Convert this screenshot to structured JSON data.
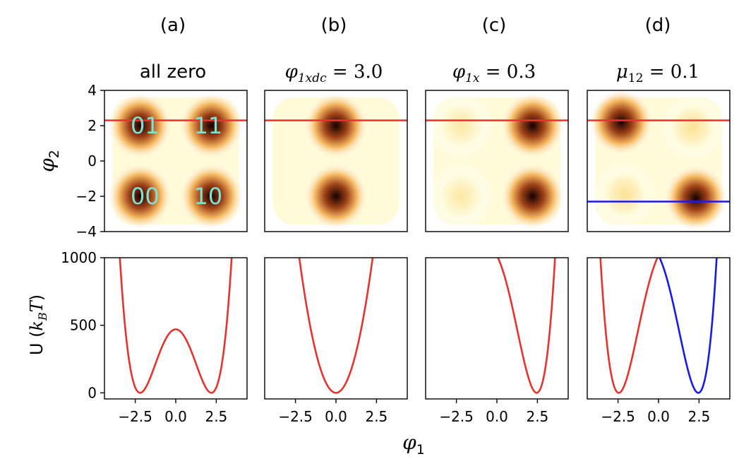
{
  "chart_data": {
    "type": "figure",
    "panels": [
      {
        "id": "a",
        "letter": "(a)",
        "title": "all zero",
        "heatmap": {
          "type": "heatmap",
          "wells": [
            [
              -2.2,
              -2.0,
              1.0
            ],
            [
              2.2,
              -2.0,
              1.0
            ],
            [
              -2.2,
              2.0,
              1.0
            ],
            [
              2.2,
              2.0,
              1.0
            ]
          ],
          "state_labels": [
            {
              "text": "01",
              "x": -1.9,
              "y": 2.05
            },
            {
              "text": "11",
              "x": 2.0,
              "y": 2.05
            },
            {
              "text": "00",
              "x": -1.9,
              "y": -1.95
            },
            {
              "text": "10",
              "x": 2.0,
              "y": -1.95
            }
          ],
          "hlines": [
            {
              "y": 2.3,
              "color": "#e3342f"
            }
          ]
        },
        "potential": {
          "type": "line",
          "series": [
            {
              "name": "U",
              "color": "#e3342f",
              "curve": "dw_sym",
              "params": {
                "a": 2.2,
                "barrier": 470
              }
            }
          ]
        }
      },
      {
        "id": "b",
        "letter": "(b)",
        "title_parts": {
          "base": "φ",
          "sub": "1xdc",
          "rest": " = 3.0"
        },
        "heatmap": {
          "type": "heatmap",
          "wells": [
            [
              0.0,
              2.0,
              1.0
            ],
            [
              0.0,
              -2.0,
              1.0
            ]
          ],
          "state_labels": [],
          "hlines": [
            {
              "y": 2.3,
              "color": "#e3342f"
            }
          ]
        },
        "potential": {
          "type": "line",
          "series": [
            {
              "name": "U",
              "color": "#e3342f",
              "curve": "parabola",
              "params": {
                "k": 195
              }
            }
          ]
        }
      },
      {
        "id": "c",
        "letter": "(c)",
        "title_parts": {
          "base": "φ",
          "sub": "1x",
          "rest": " = 0.3"
        },
        "heatmap": {
          "type": "heatmap",
          "wells": [
            [
              2.2,
              2.0,
              1.0
            ],
            [
              2.2,
              -2.0,
              1.0
            ],
            [
              -2.2,
              2.0,
              0.22
            ],
            [
              -2.2,
              -2.0,
              0.22
            ]
          ],
          "state_labels": [],
          "hlines": [
            {
              "y": 2.3,
              "color": "#e3342f"
            }
          ]
        },
        "potential": {
          "type": "line",
          "series": [
            {
              "name": "U",
              "color": "#e3342f",
              "curve": "dw_tilt",
              "params": {
                "a": 2.2,
                "barrier": 470,
                "tilt": -0.78
              }
            }
          ]
        }
      },
      {
        "id": "d",
        "letter": "(d)",
        "title_parts": {
          "base": "μ",
          "sub": "12",
          "rest": " = 0.1"
        },
        "heatmap": {
          "type": "heatmap",
          "wells": [
            [
              -2.3,
              2.2,
              1.0
            ],
            [
              2.3,
              -2.1,
              1.0
            ],
            [
              2.1,
              1.9,
              0.25
            ],
            [
              -2.1,
              -1.9,
              0.25
            ]
          ],
          "state_labels": [],
          "hlines": [
            {
              "y": 2.3,
              "color": "#e3342f"
            },
            {
              "y": -2.3,
              "color": "#1a1ae6"
            }
          ]
        },
        "potential": {
          "type": "line",
          "series": [
            {
              "name": "U_red",
              "color": "#e3342f",
              "curve": "dw_tilt",
              "params": {
                "a": 2.2,
                "barrier": 470,
                "tilt": 0.78
              }
            },
            {
              "name": "U_blue",
              "color": "#1a1ae6",
              "curve": "dw_tilt",
              "params": {
                "a": 2.2,
                "barrier": 470,
                "tilt": -0.78
              }
            }
          ]
        }
      }
    ],
    "heatmap_axes": {
      "x_range": [
        -4.4,
        4.4
      ],
      "y_range": [
        -4,
        4
      ],
      "y_ticks": [
        "4",
        "2",
        "0",
        "−2",
        "−4"
      ],
      "y_tick_values": [
        4,
        2,
        0,
        -2,
        -4
      ],
      "ylabel_base": "φ",
      "ylabel_sub": "2"
    },
    "potential_axes": {
      "x_range": [
        -4.4,
        4.4
      ],
      "y_range": [
        -45,
        1000
      ],
      "y_ticks": [
        "1000",
        "500",
        "0"
      ],
      "y_tick_values": [
        1000,
        500,
        0
      ],
      "x_ticks": [
        "−2.5",
        "0.0",
        "2.5"
      ],
      "x_tick_values": [
        -2.5,
        0.0,
        2.5
      ],
      "ylabel": "U (",
      "ylabel_k": "k",
      "ylabel_B": "B",
      "ylabel_T": "T",
      "ylabel_close": ")",
      "xlabel_base": "φ",
      "xlabel_sub": "1"
    },
    "colors": {
      "state_label": "#7fe3d4",
      "axis": "#000000",
      "background": "#ffffff"
    }
  }
}
